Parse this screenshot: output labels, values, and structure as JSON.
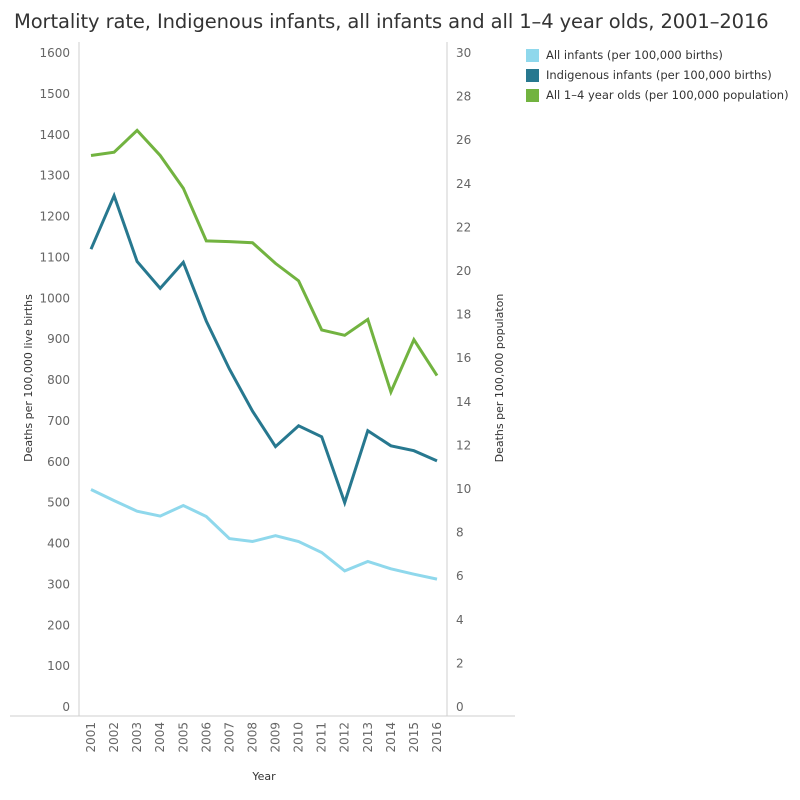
{
  "chart_data": {
    "type": "line",
    "title": "Mortality rate, Indigenous infants, all infants and all 1–4 year olds, 2001–2016",
    "xlabel": "Year",
    "ylabel_left": "Deaths per 100,000 live births",
    "ylabel_right": "Deaths per 100,000 populaton",
    "ylim_left": [
      0,
      1600
    ],
    "ylim_right": [
      0,
      30
    ],
    "yticks_left": [
      "0",
      "100",
      "200",
      "300",
      "400",
      "500",
      "600",
      "700",
      "800",
      "900",
      "1000",
      "1100",
      "1200",
      "1300",
      "1400",
      "1500",
      "1600"
    ],
    "yticks_right": [
      "0",
      "2",
      "4",
      "6",
      "8",
      "10",
      "12",
      "14",
      "16",
      "18",
      "20",
      "22",
      "24",
      "26",
      "28",
      "30"
    ],
    "grid": false,
    "legend_position": "right",
    "categories": [
      "2001",
      "2002",
      "2003",
      "2004",
      "2005",
      "2006",
      "2007",
      "2008",
      "2009",
      "2010",
      "2011",
      "2012",
      "2013",
      "2014",
      "2015",
      "2016"
    ],
    "series": [
      {
        "name": "All infants (per 100,000 births)",
        "axis": "left",
        "color": "#8fd8ec",
        "values": [
          532,
          505,
          479,
          467,
          493,
          466,
          412,
          405,
          419,
          405,
          378,
          333,
          356,
          338,
          325,
          313
        ]
      },
      {
        "name": "Indigenous infants (per 100,000 births)",
        "axis": "left",
        "color": "#27788f",
        "values": [
          1120,
          1251,
          1090,
          1024,
          1088,
          944,
          827,
          724,
          637,
          688,
          661,
          500,
          676,
          639,
          627,
          602
        ]
      },
      {
        "name": "All 1–4 year olds (per 100,000 population)",
        "axis": "right",
        "color": "#72b340",
        "values": [
          25.3,
          25.45,
          26.45,
          25.3,
          23.8,
          21.38,
          21.35,
          21.3,
          20.35,
          19.55,
          17.3,
          17.05,
          17.78,
          14.45,
          16.85,
          15.2
        ]
      }
    ]
  }
}
